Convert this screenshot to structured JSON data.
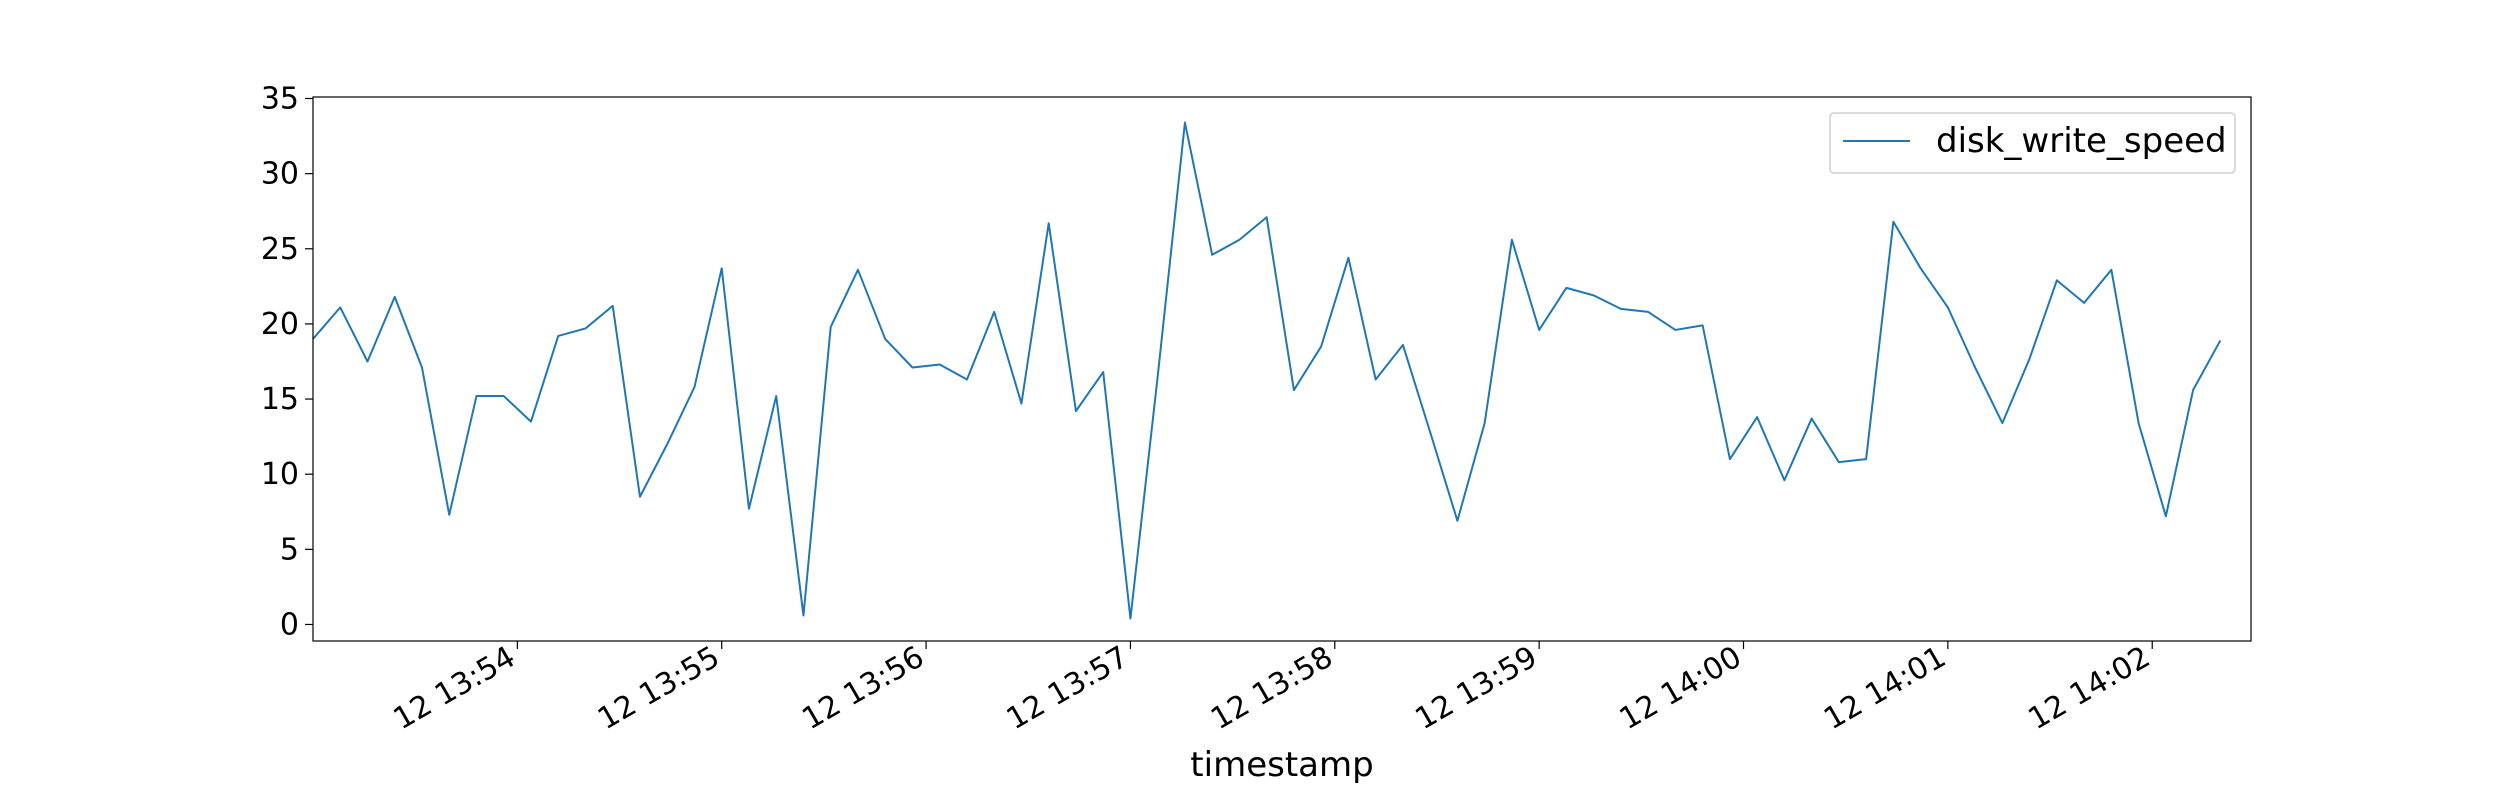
{
  "chart_data": {
    "type": "line",
    "xlabel": "timestamp",
    "ylabel": "",
    "title": "",
    "ylim": [
      -1.1,
      35.1
    ],
    "y_ticks": [
      0,
      5,
      10,
      15,
      20,
      25,
      30,
      35
    ],
    "x_ticks": [
      {
        "t": 60,
        "label": "12 13:54"
      },
      {
        "t": 120,
        "label": "12 13:55"
      },
      {
        "t": 180,
        "label": "12 13:56"
      },
      {
        "t": 240,
        "label": "12 13:57"
      },
      {
        "t": 300,
        "label": "12 13:58"
      },
      {
        "t": 360,
        "label": "12 13:59"
      },
      {
        "t": 420,
        "label": "12 14:00"
      },
      {
        "t": 480,
        "label": "12 14:01"
      },
      {
        "t": 540,
        "label": "12 14:02"
      }
    ],
    "xlim": [
      0,
      569
    ],
    "legend": {
      "position": "top-right"
    },
    "grid": false,
    "series": [
      {
        "name": "disk_write_speed",
        "color": "#1f77b4",
        "step_seconds": 8,
        "values": [
          19.0,
          21.1,
          17.5,
          21.8,
          17.1,
          7.3,
          15.2,
          15.2,
          13.5,
          19.2,
          19.7,
          21.2,
          8.5,
          12.0,
          15.8,
          23.7,
          7.7,
          15.2,
          0.6,
          19.8,
          23.6,
          19.0,
          17.1,
          17.3,
          16.3,
          20.8,
          14.7,
          26.7,
          14.2,
          16.8,
          0.4,
          16.5,
          33.4,
          24.6,
          25.6,
          27.1,
          15.6,
          18.5,
          24.4,
          16.3,
          18.6,
          12.8,
          6.9,
          13.4,
          25.6,
          19.6,
          22.4,
          21.9,
          21.0,
          20.8,
          19.6,
          19.9,
          11.0,
          13.8,
          9.6,
          13.7,
          10.8,
          11.0,
          26.8,
          23.7,
          21.1,
          17.1,
          13.4,
          17.7,
          22.9,
          21.4,
          23.6,
          13.4,
          7.2,
          15.6,
          18.9
        ]
      }
    ]
  }
}
